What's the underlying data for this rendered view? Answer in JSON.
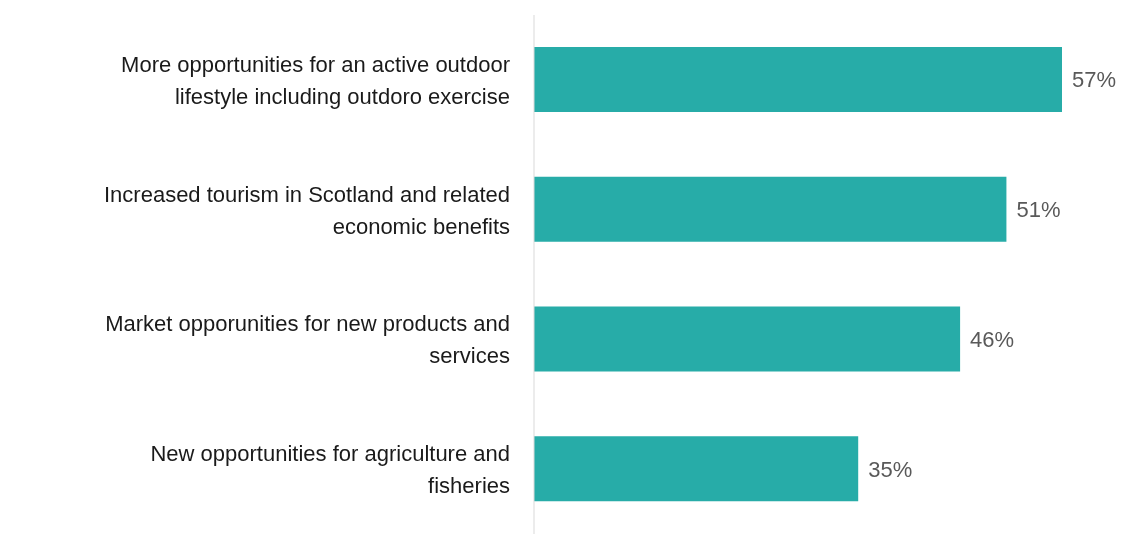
{
  "chart_data": {
    "type": "bar",
    "orientation": "horizontal",
    "categories": [
      "More opportunities for an active outdoor lifestyle including outdoro exercise",
      "Increased tourism in Scotland and related economic benefits",
      "Market opporunities for new products and services",
      "New opportunities for agriculture and fisheries"
    ],
    "values": [
      57,
      51,
      46,
      35
    ],
    "color": "#27aca8",
    "data_labels": true,
    "value_labels": [
      "57%",
      "51%",
      "46%",
      "35%"
    ]
  }
}
